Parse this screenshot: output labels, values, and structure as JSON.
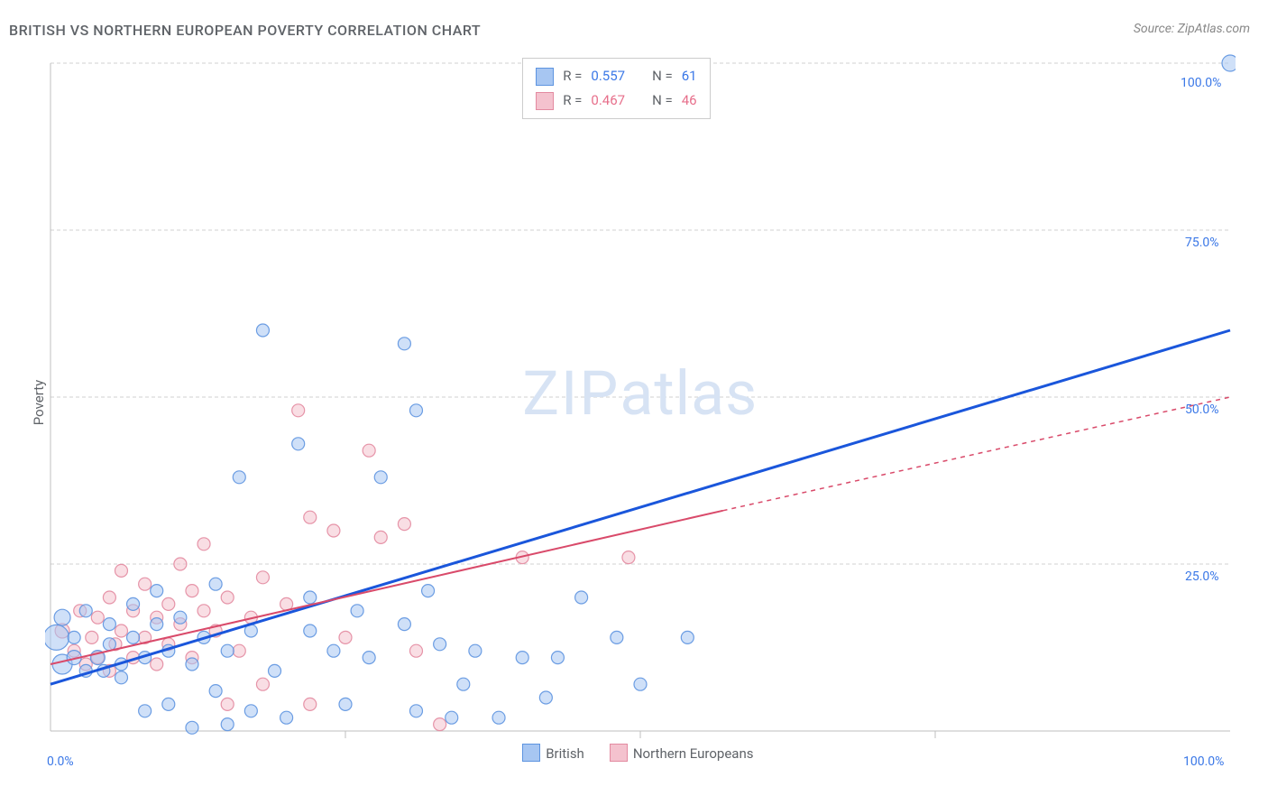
{
  "title": "BRITISH VS NORTHERN EUROPEAN POVERTY CORRELATION CHART",
  "source": "Source: ZipAtlas.com",
  "ylabel": "Poverty",
  "watermark": "ZIPatlas",
  "chart": {
    "type": "scatter",
    "xlim": [
      0,
      100
    ],
    "ylim": [
      0,
      100
    ],
    "grid_color": "#d0d0d0",
    "grid_dash": "4,3",
    "axis_color": "#bfbfbf",
    "background_color": "#ffffff",
    "y_ticks": [
      0,
      25,
      50,
      75,
      100
    ],
    "y_tick_labels": [
      "0.0%",
      "25.0%",
      "50.0%",
      "75.0%",
      "100.0%"
    ],
    "x_ticks": [
      0,
      50,
      100
    ],
    "x_tick_labels": [
      "0.0%",
      "",
      "100.0%"
    ],
    "x_minor_ticks": [
      25,
      50,
      75
    ],
    "point_radius_min": 6,
    "point_radius_max": 14,
    "point_opacity": 0.55
  },
  "series": [
    {
      "name": "British",
      "fill": "#a7c6f2",
      "stroke": "#5d94e0",
      "trend_color": "#1a56db",
      "trend_width": 3,
      "trend_dash_extend": "",
      "R": "0.557",
      "N": "61",
      "trend": {
        "x1": 0,
        "y1": 7,
        "x2": 100,
        "y2": 60
      },
      "points": [
        {
          "x": 0.5,
          "y": 14,
          "r": 14
        },
        {
          "x": 1,
          "y": 10,
          "r": 11
        },
        {
          "x": 1,
          "y": 17,
          "r": 9
        },
        {
          "x": 2,
          "y": 11,
          "r": 8
        },
        {
          "x": 2,
          "y": 14,
          "r": 7
        },
        {
          "x": 3,
          "y": 9,
          "r": 7
        },
        {
          "x": 3,
          "y": 18,
          "r": 7
        },
        {
          "x": 4,
          "y": 11,
          "r": 8
        },
        {
          "x": 4.5,
          "y": 9,
          "r": 7
        },
        {
          "x": 5,
          "y": 13,
          "r": 7
        },
        {
          "x": 5,
          "y": 16,
          "r": 7
        },
        {
          "x": 6,
          "y": 10,
          "r": 7
        },
        {
          "x": 6,
          "y": 8,
          "r": 7
        },
        {
          "x": 7,
          "y": 14,
          "r": 7
        },
        {
          "x": 7,
          "y": 19,
          "r": 7
        },
        {
          "x": 8,
          "y": 11,
          "r": 7
        },
        {
          "x": 8,
          "y": 3,
          "r": 7
        },
        {
          "x": 9,
          "y": 16,
          "r": 7
        },
        {
          "x": 9,
          "y": 21,
          "r": 7
        },
        {
          "x": 10,
          "y": 12,
          "r": 7
        },
        {
          "x": 10,
          "y": 4,
          "r": 7
        },
        {
          "x": 11,
          "y": 17,
          "r": 7
        },
        {
          "x": 12,
          "y": 10,
          "r": 7
        },
        {
          "x": 12,
          "y": 0.5,
          "r": 7
        },
        {
          "x": 13,
          "y": 14,
          "r": 7
        },
        {
          "x": 14,
          "y": 6,
          "r": 7
        },
        {
          "x": 14,
          "y": 22,
          "r": 7
        },
        {
          "x": 15,
          "y": 12,
          "r": 7
        },
        {
          "x": 15,
          "y": 1,
          "r": 7
        },
        {
          "x": 16,
          "y": 38,
          "r": 7
        },
        {
          "x": 17,
          "y": 15,
          "r": 7
        },
        {
          "x": 17,
          "y": 3,
          "r": 7
        },
        {
          "x": 18,
          "y": 60,
          "r": 7
        },
        {
          "x": 19,
          "y": 9,
          "r": 7
        },
        {
          "x": 20,
          "y": 2,
          "r": 7
        },
        {
          "x": 21,
          "y": 43,
          "r": 7
        },
        {
          "x": 22,
          "y": 15,
          "r": 7
        },
        {
          "x": 22,
          "y": 20,
          "r": 7
        },
        {
          "x": 24,
          "y": 12,
          "r": 7
        },
        {
          "x": 25,
          "y": 4,
          "r": 7
        },
        {
          "x": 26,
          "y": 18,
          "r": 7
        },
        {
          "x": 27,
          "y": 11,
          "r": 7
        },
        {
          "x": 28,
          "y": 38,
          "r": 7
        },
        {
          "x": 30,
          "y": 16,
          "r": 7
        },
        {
          "x": 30,
          "y": 58,
          "r": 7
        },
        {
          "x": 31,
          "y": 48,
          "r": 7
        },
        {
          "x": 31,
          "y": 3,
          "r": 7
        },
        {
          "x": 32,
          "y": 21,
          "r": 7
        },
        {
          "x": 33,
          "y": 13,
          "r": 7
        },
        {
          "x": 34,
          "y": 2,
          "r": 7
        },
        {
          "x": 35,
          "y": 7,
          "r": 7
        },
        {
          "x": 36,
          "y": 12,
          "r": 7
        },
        {
          "x": 38,
          "y": 2,
          "r": 7
        },
        {
          "x": 40,
          "y": 11,
          "r": 7
        },
        {
          "x": 42,
          "y": 5,
          "r": 7
        },
        {
          "x": 43,
          "y": 11,
          "r": 7
        },
        {
          "x": 45,
          "y": 20,
          "r": 7
        },
        {
          "x": 48,
          "y": 14,
          "r": 7
        },
        {
          "x": 50,
          "y": 7,
          "r": 7
        },
        {
          "x": 54,
          "y": 14,
          "r": 7
        },
        {
          "x": 100,
          "y": 100,
          "r": 9
        }
      ]
    },
    {
      "name": "Northern Europeans",
      "fill": "#f4c2ce",
      "stroke": "#e38aa0",
      "trend_color": "#d94a6a",
      "trend_width": 2,
      "trend_dash_extend": "5,5",
      "R": "0.467",
      "N": "46",
      "trend": {
        "x1": 0,
        "y1": 10,
        "x2": 57,
        "y2": 33
      },
      "trend_ext": {
        "x1": 57,
        "y1": 33,
        "x2": 100,
        "y2": 50
      },
      "points": [
        {
          "x": 1,
          "y": 15,
          "r": 8
        },
        {
          "x": 2,
          "y": 12,
          "r": 7
        },
        {
          "x": 2.5,
          "y": 18,
          "r": 7
        },
        {
          "x": 3,
          "y": 10,
          "r": 7
        },
        {
          "x": 3.5,
          "y": 14,
          "r": 7
        },
        {
          "x": 4,
          "y": 11,
          "r": 7
        },
        {
          "x": 4,
          "y": 17,
          "r": 7
        },
        {
          "x": 5,
          "y": 9,
          "r": 7
        },
        {
          "x": 5,
          "y": 20,
          "r": 7
        },
        {
          "x": 5.5,
          "y": 13,
          "r": 7
        },
        {
          "x": 6,
          "y": 15,
          "r": 7
        },
        {
          "x": 6,
          "y": 24,
          "r": 7
        },
        {
          "x": 7,
          "y": 11,
          "r": 7
        },
        {
          "x": 7,
          "y": 18,
          "r": 7
        },
        {
          "x": 8,
          "y": 14,
          "r": 7
        },
        {
          "x": 8,
          "y": 22,
          "r": 7
        },
        {
          "x": 9,
          "y": 10,
          "r": 7
        },
        {
          "x": 9,
          "y": 17,
          "r": 7
        },
        {
          "x": 10,
          "y": 19,
          "r": 7
        },
        {
          "x": 10,
          "y": 13,
          "r": 7
        },
        {
          "x": 11,
          "y": 25,
          "r": 7
        },
        {
          "x": 11,
          "y": 16,
          "r": 7
        },
        {
          "x": 12,
          "y": 11,
          "r": 7
        },
        {
          "x": 12,
          "y": 21,
          "r": 7
        },
        {
          "x": 13,
          "y": 18,
          "r": 7
        },
        {
          "x": 13,
          "y": 28,
          "r": 7
        },
        {
          "x": 14,
          "y": 15,
          "r": 7
        },
        {
          "x": 15,
          "y": 20,
          "r": 7
        },
        {
          "x": 15,
          "y": 4,
          "r": 7
        },
        {
          "x": 16,
          "y": 12,
          "r": 7
        },
        {
          "x": 17,
          "y": 17,
          "r": 7
        },
        {
          "x": 18,
          "y": 7,
          "r": 7
        },
        {
          "x": 18,
          "y": 23,
          "r": 7
        },
        {
          "x": 20,
          "y": 19,
          "r": 7
        },
        {
          "x": 21,
          "y": 48,
          "r": 7
        },
        {
          "x": 22,
          "y": 32,
          "r": 7
        },
        {
          "x": 22,
          "y": 4,
          "r": 7
        },
        {
          "x": 24,
          "y": 30,
          "r": 7
        },
        {
          "x": 25,
          "y": 14,
          "r": 7
        },
        {
          "x": 27,
          "y": 42,
          "r": 7
        },
        {
          "x": 28,
          "y": 29,
          "r": 7
        },
        {
          "x": 30,
          "y": 31,
          "r": 7
        },
        {
          "x": 31,
          "y": 12,
          "r": 7
        },
        {
          "x": 33,
          "y": 1,
          "r": 7
        },
        {
          "x": 40,
          "y": 26,
          "r": 7
        },
        {
          "x": 49,
          "y": 26,
          "r": 7
        }
      ]
    }
  ],
  "stats_box": {
    "rows": [
      {
        "series": 0,
        "R_label": "R =",
        "N_label": "N ="
      },
      {
        "series": 1,
        "R_label": "R =",
        "N_label": "N ="
      }
    ]
  },
  "bottom_legend": [
    {
      "series": 0
    },
    {
      "series": 1
    }
  ]
}
